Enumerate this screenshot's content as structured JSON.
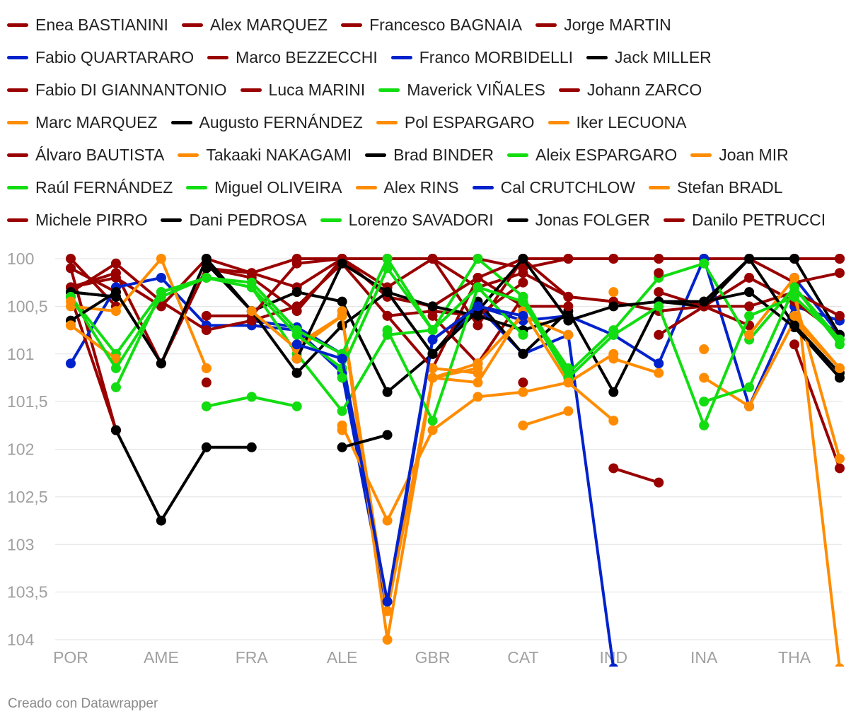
{
  "chart_data": {
    "type": "line",
    "y_reversed": true,
    "ylim": [
      100,
      104
    ],
    "y_ticks": [
      "100",
      "100,5",
      "101",
      "101,5",
      "102",
      "102,5",
      "103",
      "103,5",
      "104"
    ],
    "y_tick_values": [
      100,
      100.5,
      101,
      101.5,
      102,
      102.5,
      103,
      103.5,
      104
    ],
    "x_tick_labels": [
      "POR",
      "AME",
      "FRA",
      "ALE",
      "GBR",
      "CAT",
      "IND",
      "INA",
      "THA"
    ],
    "x_tick_index": [
      0,
      2,
      4,
      6,
      8,
      10,
      12,
      14,
      16
    ],
    "x_count": 18,
    "colors": {
      "red": "#990000",
      "blue": "#0022cc",
      "black": "#000000",
      "green": "#11dd11",
      "orange": "#ff8c00"
    },
    "series": [
      {
        "name": "Enea BASTIANINI",
        "color": "red",
        "values": [
          100.1,
          101.8,
          null,
          null,
          null,
          null,
          null,
          null,
          null,
          null,
          null,
          null,
          null,
          null,
          null,
          null,
          null,
          null
        ]
      },
      {
        "name": "Alex MARQUEZ",
        "color": "red",
        "values": [
          100.0,
          100.5,
          null,
          101.3,
          null,
          101.2,
          null,
          null,
          100.6,
          101.1,
          100.4,
          null,
          102.2,
          102.35,
          null,
          null,
          100.9,
          102.2
        ]
      },
      {
        "name": "Francesco BAGNAIA",
        "color": "red",
        "values": [
          100.3,
          100.15,
          101.1,
          100.1,
          100.2,
          100.55,
          100.0,
          100.0,
          100.0,
          100.0,
          100.1,
          100.0,
          100.0,
          100.0,
          100.0,
          100.0,
          100.0,
          100.0
        ]
      },
      {
        "name": "Jorge MARTIN",
        "color": "red",
        "values": [
          100.3,
          100.2,
          100.5,
          100.0,
          100.15,
          100.0,
          100.0,
          100.0,
          100.0,
          100.7,
          100.0,
          100.0,
          100.0,
          100.0,
          100.0,
          100.0,
          100.0,
          100.0
        ]
      },
      {
        "name": "Fabio QUARTARARO",
        "color": "blue",
        "values": [
          101.1,
          100.3,
          100.2,
          100.7,
          100.7,
          100.75,
          101.2,
          103.7,
          100.85,
          100.5,
          100.65,
          100.6,
          100.8,
          101.1,
          100.0,
          101.55,
          100.5,
          100.65
        ]
      },
      {
        "name": "Marco BEZZECCHI",
        "color": "red",
        "values": [
          100.1,
          100.35,
          101.1,
          100.1,
          100.15,
          100.3,
          100.0,
          100.3,
          100.0,
          100.3,
          100.15,
          100.4,
          100.45,
          100.55,
          100.5,
          100.2,
          100.45,
          100.8
        ]
      },
      {
        "name": "Franco MORBIDELLI",
        "color": "blue",
        "values": [
          null,
          null,
          null,
          null,
          100.65,
          100.72,
          101.0,
          null,
          101.0,
          100.5,
          101.0,
          100.8,
          104.3,
          null,
          null,
          null,
          100.2,
          100.8
        ]
      },
      {
        "name": "Jack MILLER",
        "color": "black",
        "values": [
          100.35,
          100.4,
          null,
          100.05,
          100.55,
          100.35,
          100.45,
          101.4,
          101.0,
          100.45,
          101.0,
          100.55,
          101.4,
          100.45,
          100.5,
          100.0,
          100.0,
          100.8
        ]
      },
      {
        "name": "Fabio DI GIANNANTONIO",
        "color": "red",
        "values": [
          null,
          null,
          null,
          null,
          null,
          101.05,
          null,
          100.6,
          101.15,
          100.2,
          100.5,
          100.5,
          null,
          100.8,
          100.5,
          100.7,
          null,
          null
        ]
      },
      {
        "name": "Luca MARINI",
        "color": "red",
        "values": [
          100.35,
          100.05,
          100.45,
          100.75,
          100.65,
          100.5,
          100.05,
          100.6,
          100.55,
          100.6,
          100.25,
          null,
          null,
          100.35,
          100.5,
          100.5,
          100.35,
          100.6
        ]
      },
      {
        "name": "Maverick VIÑALES",
        "color": "green",
        "values": [
          100.4,
          101.0,
          100.35,
          100.2,
          100.3,
          101.0,
          101.6,
          100.8,
          100.75,
          100.0,
          100.4,
          101.2,
          100.75,
          100.2,
          100.05,
          100.85,
          100.3,
          100.9
        ]
      },
      {
        "name": "Johann ZARCO",
        "color": "red",
        "values": [
          100.4,
          101.8,
          null,
          100.6,
          100.6,
          100.05,
          100.0,
          100.4,
          100.5,
          100.2,
          100.0,
          100.4,
          null,
          100.15,
          null,
          100.0,
          100.25,
          100.15
        ]
      },
      {
        "name": "Marc MARQUEZ",
        "color": "orange",
        "values": [
          100.5,
          100.55,
          100.0,
          101.15,
          null,
          100.9,
          100.6,
          104.0,
          101.25,
          101.1,
          100.6,
          100.8,
          null,
          null,
          null,
          100.8,
          100.2,
          104.3
        ]
      },
      {
        "name": "Augusto FERNÁNDEZ",
        "color": "black",
        "values": [
          100.65,
          100.35,
          101.1,
          100.0,
          100.55,
          101.2,
          100.7,
          100.35,
          100.5,
          100.6,
          100.75,
          100.6,
          null,
          100.45,
          100.45,
          100.35,
          100.72,
          101.25
        ]
      },
      {
        "name": "Pol ESPARGARO",
        "color": "orange",
        "values": [
          100.7,
          null,
          null,
          101.55,
          null,
          null,
          101.75,
          102.75,
          101.8,
          101.45,
          101.4,
          101.3,
          101.7,
          null,
          null,
          null,
          100.4,
          102.1
        ]
      },
      {
        "name": "Iker LECUONA",
        "color": "orange",
        "values": [
          null,
          null,
          null,
          null,
          null,
          null,
          null,
          null,
          null,
          null,
          101.75,
          101.6,
          null,
          null,
          100.95,
          null,
          null,
          null
        ]
      },
      {
        "name": "Álvaro BAUTISTA",
        "color": "red",
        "values": [
          null,
          null,
          null,
          null,
          null,
          null,
          null,
          null,
          null,
          null,
          null,
          null,
          null,
          null,
          null,
          null,
          null,
          null
        ]
      },
      {
        "name": "Takaaki NAKAGAMI",
        "color": "orange",
        "values": [
          100.7,
          101.05,
          null,
          null,
          100.55,
          100.95,
          100.6,
          103.7,
          101.25,
          101.3,
          100.55,
          101.3,
          101.0,
          null,
          101.25,
          101.55,
          100.65,
          101.15
        ]
      },
      {
        "name": "Brad BINDER",
        "color": "black",
        "values": [
          100.35,
          100.4,
          null,
          100.1,
          null,
          101.05,
          100.05,
          100.35,
          101.0,
          100.55,
          100.0,
          100.65,
          100.5,
          100.45,
          100.45,
          100.0,
          100.7,
          101.2
        ]
      },
      {
        "name": "Aleix ESPARGARO",
        "color": "green",
        "values": [
          100.4,
          101.15,
          100.4,
          100.2,
          100.3,
          100.8,
          101.15,
          100.1,
          100.75,
          100.3,
          100.45,
          101.25,
          100.8,
          100.5,
          101.75,
          100.6,
          100.4,
          100.85
        ]
      },
      {
        "name": "Joan MIR",
        "color": "orange",
        "values": [
          100.45,
          null,
          null,
          101.15,
          null,
          101.05,
          null,
          null,
          101.25,
          101.15,
          null,
          null,
          101.05,
          101.2,
          null,
          null,
          100.6,
          101.15
        ]
      },
      {
        "name": "Raúl FERNÁNDEZ",
        "color": "green",
        "values": [
          null,
          null,
          null,
          101.55,
          101.45,
          101.55,
          null,
          100.75,
          101.7,
          100.3,
          100.45,
          101.15,
          null,
          null,
          101.5,
          101.35,
          100.3,
          100.85
        ]
      },
      {
        "name": "Miguel OLIVEIRA",
        "color": "green",
        "values": [
          null,
          101.35,
          100.35,
          100.2,
          100.25,
          100.75,
          101.0,
          100.0,
          100.75,
          100.3,
          100.8,
          null,
          null,
          null,
          null,
          null,
          null,
          null
        ]
      },
      {
        "name": "Alex RINS",
        "color": "orange",
        "values": [
          null,
          null,
          null,
          null,
          null,
          null,
          100.55,
          null,
          101.15,
          101.2,
          null,
          101.3,
          null,
          null,
          null,
          null,
          null,
          null
        ]
      },
      {
        "name": "Cal CRUTCHLOW",
        "color": "blue",
        "values": [
          null,
          null,
          null,
          null,
          null,
          100.9,
          101.05,
          103.6,
          100.85,
          100.5,
          100.6,
          null,
          null,
          null,
          null,
          null,
          null,
          null
        ]
      },
      {
        "name": "Stefan BRADL",
        "color": "orange",
        "values": [
          null,
          null,
          null,
          null,
          null,
          null,
          101.8,
          null,
          null,
          null,
          null,
          null,
          100.35,
          null,
          null,
          null,
          null,
          null
        ]
      },
      {
        "name": "Michele PIRRO",
        "color": "red",
        "values": [
          null,
          null,
          null,
          null,
          null,
          null,
          null,
          null,
          null,
          null,
          101.3,
          null,
          null,
          null,
          null,
          null,
          null,
          null
        ]
      },
      {
        "name": "Dani PEDROSA",
        "color": "black",
        "values": [
          null,
          null,
          null,
          null,
          null,
          null,
          null,
          100.35,
          101.0,
          null,
          null,
          null,
          null,
          null,
          null,
          null,
          null,
          null
        ]
      },
      {
        "name": "Lorenzo SAVADORI",
        "color": "green",
        "values": [
          null,
          null,
          null,
          null,
          null,
          null,
          101.25,
          null,
          null,
          null,
          null,
          null,
          null,
          null,
          null,
          null,
          null,
          null
        ]
      },
      {
        "name": "Jonas FOLGER",
        "color": "black",
        "values": [
          null,
          101.8,
          102.75,
          101.98,
          101.98,
          null,
          101.98,
          101.85,
          null,
          null,
          null,
          null,
          null,
          null,
          null,
          null,
          null,
          null
        ]
      },
      {
        "name": "Danilo PETRUCCI",
        "color": "red",
        "values": [
          null,
          null,
          null,
          null,
          null,
          null,
          null,
          null,
          null,
          null,
          null,
          null,
          null,
          null,
          null,
          null,
          null,
          100.0
        ]
      }
    ]
  },
  "footer": "Creado con Datawrapper"
}
